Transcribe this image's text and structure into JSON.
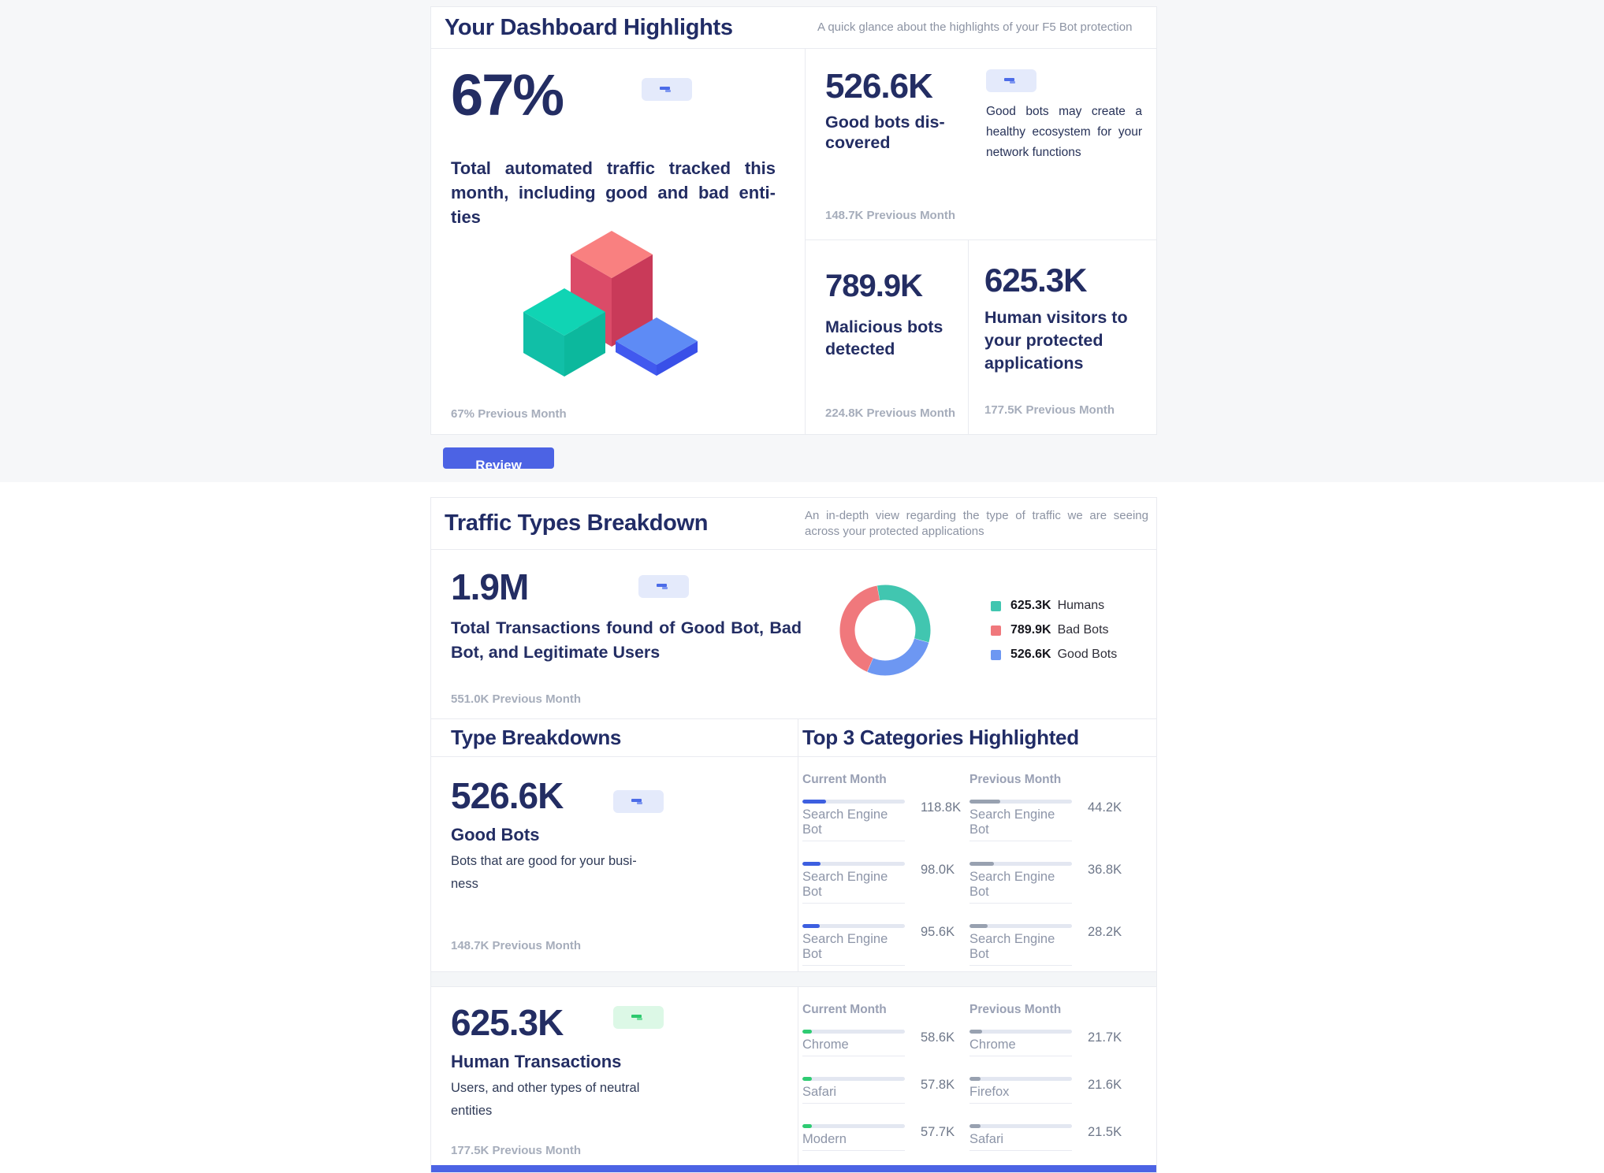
{
  "colors": {
    "navy": "#232d63",
    "page_bg": "#f6f7f9",
    "card_border": "#e9ebf0",
    "accent_blue": "#4c63e4",
    "subtitle_gray": "#8c93a3",
    "footer_gray": "#a6adbb",
    "badge_bg": "#e4eafb",
    "badge_glyph": "#4c6ce8",
    "green_badge_bg": "#dcf8e6",
    "green_badge_glyph": "#2dc96e",
    "donut_teal": "#41c6b0",
    "donut_red": "#f0787c",
    "donut_blue": "#6d97f2",
    "bar_track": "#e3e7f1",
    "bar_current_blue": "#3d5fe0",
    "bar_previous_gray": "#98a1b0",
    "bar_current_green": "#2ecb72"
  },
  "chart_data": [
    {
      "type": "pie",
      "subtype": "donut",
      "title": "Traffic Types Breakdown",
      "labels": [
        "Humans",
        "Good Bots",
        "Bad Bots"
      ],
      "values": [
        625300,
        526600,
        789900
      ],
      "display_values": [
        "625.3K",
        "526.6K",
        "789.9K"
      ],
      "colors": [
        "#41c6b0",
        "#6d97f2",
        "#f0787c"
      ],
      "start_angle": -10,
      "legend_position": "right"
    },
    {
      "type": "bar",
      "title": "Good Bots - Top 3 Categories Highlighted",
      "series": [
        {
          "name": "Current Month",
          "categories": [
            "Search Engine Bot",
            "Search Engine Bot",
            "Search Engine Bot"
          ],
          "values": [
            "118.8K",
            "98.0K",
            "95.6K"
          ],
          "pct": [
            23,
            18,
            17
          ]
        },
        {
          "name": "Previous Month",
          "categories": [
            "Search Engine Bot",
            "Search Engine Bot",
            "Search Engine Bot"
          ],
          "values": [
            "44.2K",
            "36.8K",
            "28.2K"
          ],
          "pct": [
            30,
            24,
            18
          ]
        }
      ]
    },
    {
      "type": "bar",
      "title": "Human Transactions - Top 3 Categories Highlighted",
      "series": [
        {
          "name": "Current Month",
          "categories": [
            "Chrome",
            "Safari",
            "Modern"
          ],
          "values": [
            "58.6K",
            "57.8K",
            "57.7K"
          ],
          "pct": [
            9,
            9,
            9
          ]
        },
        {
          "name": "Previous Month",
          "categories": [
            "Chrome",
            "Firefox",
            "Safari"
          ],
          "values": [
            "21.7K",
            "21.6K",
            "21.5K"
          ],
          "pct": [
            12,
            11,
            11
          ]
        }
      ]
    }
  ],
  "highlights": {
    "title": "Your Dashboard Highlights",
    "subtitle": "A quick glance about the highlights of your F5 Bot protection",
    "main": {
      "value": "67%",
      "desc": "Total automated traffic tracked this month, including good and bad enti-ties",
      "footer": "67% Previous Month"
    },
    "good_bots": {
      "value": "526.6K",
      "label": "Good bots dis-covered",
      "note": "Good bots may create a healthy ecosystem for your network functions",
      "footer": "148.7K Previous Month"
    },
    "bad_bots": {
      "value": "789.9K",
      "label": "Malicious bots detected",
      "footer": "224.8K Previous Month"
    },
    "humans": {
      "value": "625.3K",
      "label": "Human visitors to your protected applications",
      "footer": "177.5K Previous Month"
    },
    "review_label": "Review"
  },
  "traffic": {
    "title": "Traffic Types Breakdown",
    "subtitle": "An in-depth view regarding the type of traffic we are seeing across your protected applications",
    "total": {
      "value": "1.9M",
      "desc": "Total Transactions found of Good Bot, Bad Bot, and Legitimate Users",
      "footer": "551.0K Previous Month"
    },
    "legend": [
      {
        "value": "625.3K",
        "label": "Humans",
        "color": "#41c6b0"
      },
      {
        "value": "789.9K",
        "label": "Bad Bots",
        "color": "#f0787c"
      },
      {
        "value": "526.6K",
        "label": "Good Bots",
        "color": "#6d97f2"
      }
    ],
    "type_breakdowns_title": "Type Breakdowns",
    "top3_title": "Top 3 Categories Highlighted",
    "col_current": "Current Month",
    "col_previous": "Previous Month",
    "good_bots_row": {
      "value": "526.6K",
      "name": "Good Bots",
      "desc": "Bots that are good for your busi-ness",
      "footer": "148.7K Previous Month",
      "current": [
        {
          "label": "Search Engine Bot",
          "value": "118.8K",
          "pct": 23
        },
        {
          "label": "Search Engine Bot",
          "value": "98.0K",
          "pct": 18
        },
        {
          "label": "Search Engine Bot",
          "value": "95.6K",
          "pct": 17
        }
      ],
      "previous": [
        {
          "label": "Search Engine Bot",
          "value": "44.2K",
          "pct": 30
        },
        {
          "label": "Search Engine Bot",
          "value": "36.8K",
          "pct": 24
        },
        {
          "label": "Search Engine Bot",
          "value": "28.2K",
          "pct": 18
        }
      ]
    },
    "human_row": {
      "value": "625.3K",
      "name": "Human Transactions",
      "desc": "Users, and other types of neutral entities",
      "footer": "177.5K Previous Month",
      "current": [
        {
          "label": "Chrome",
          "value": "58.6K",
          "pct": 9
        },
        {
          "label": "Safari",
          "value": "57.8K",
          "pct": 9
        },
        {
          "label": "Modern",
          "value": "57.7K",
          "pct": 9
        }
      ],
      "previous": [
        {
          "label": "Chrome",
          "value": "21.7K",
          "pct": 12
        },
        {
          "label": "Firefox",
          "value": "21.6K",
          "pct": 11
        },
        {
          "label": "Safari",
          "value": "21.5K",
          "pct": 11
        }
      ]
    }
  }
}
